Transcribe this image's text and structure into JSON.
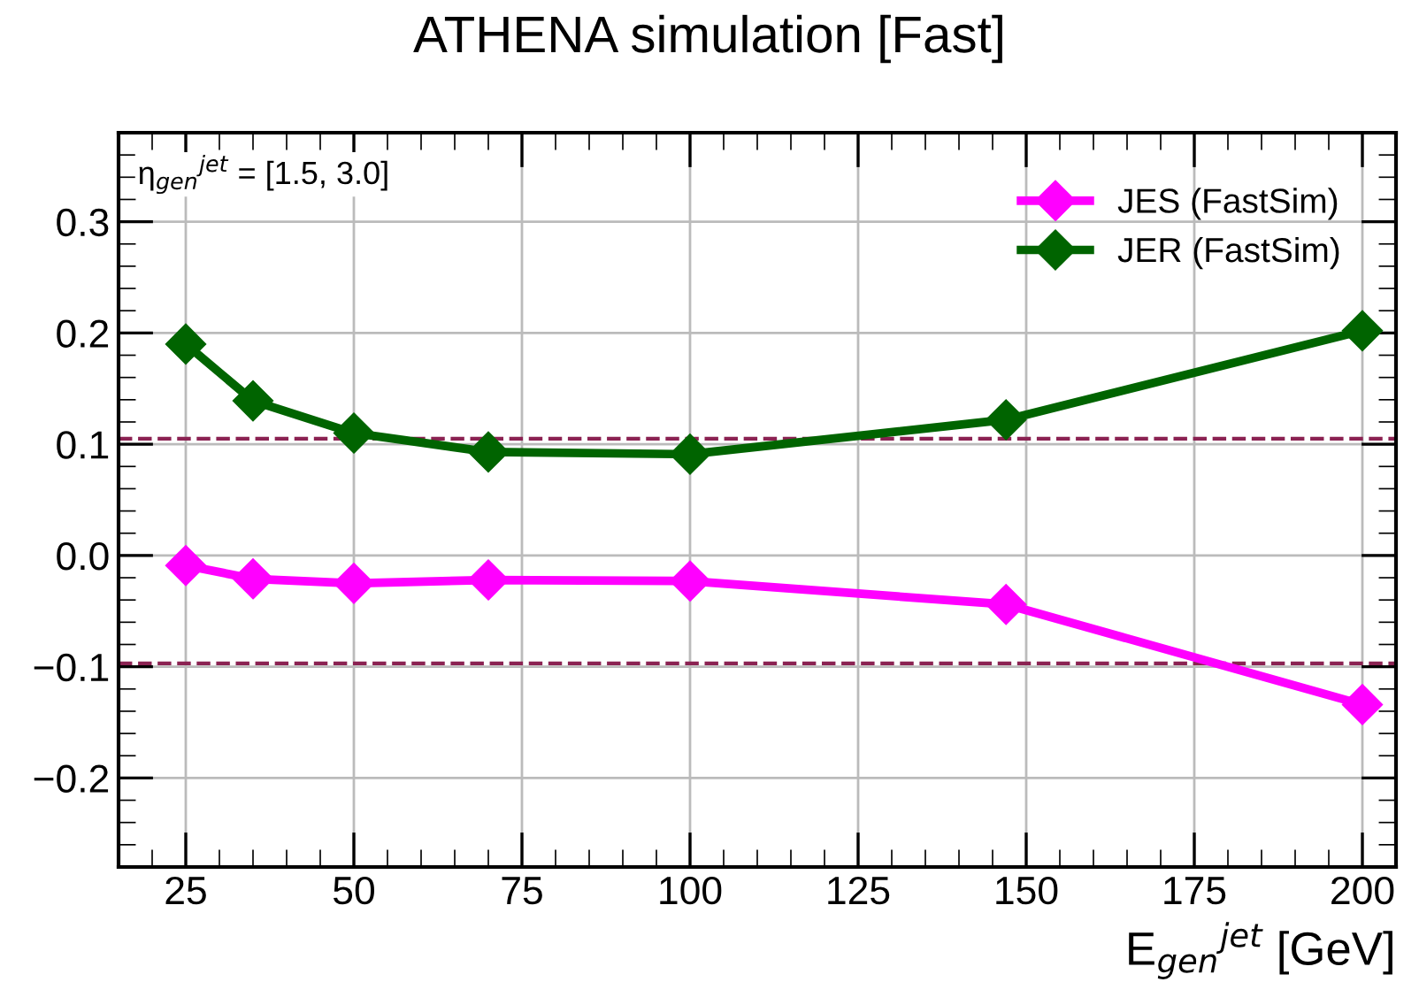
{
  "chart_data": {
    "type": "line",
    "title": "ATHENA simulation [Fast]",
    "xlabel": "E$_{gen}$$^{jet}$ [GeV]",
    "annotations": [
      "η$_{gen}$$^{jet}$ = [1.5, 3.0]"
    ],
    "x": [
      25,
      35,
      50,
      70,
      100,
      147,
      200
    ],
    "series": [
      {
        "name": "JES (FastSim)",
        "color": "#ff00ff",
        "values": [
          -0.009,
          -0.021,
          -0.025,
          -0.022,
          -0.023,
          -0.044,
          -0.134
        ]
      },
      {
        "name": "JER (FastSim)",
        "color": "#006400",
        "values": [
          0.19,
          0.139,
          0.11,
          0.093,
          0.091,
          0.122,
          0.202
        ]
      }
    ],
    "ref_lines": [
      {
        "axis": "y",
        "value": 0.105,
        "color": "#8b2252",
        "line_style": "dashed"
      },
      {
        "axis": "y",
        "value": -0.097,
        "color": "#8b2252",
        "line_style": "dashed"
      }
    ],
    "xlim": [
      15,
      205
    ],
    "xticks": [
      25,
      50,
      75,
      100,
      125,
      150,
      175,
      200
    ],
    "ylim": [
      -0.28,
      0.38
    ],
    "yticks": [
      {
        "value": -0.2,
        "label": "−0.2"
      },
      {
        "value": -0.1,
        "label": "−0.1"
      },
      {
        "value": 0,
        "label": "0.0"
      },
      0.1,
      0.2,
      0.3
    ],
    "grid": true,
    "legend": "top right",
    "marker": "diamond",
    "line_style": "solid"
  }
}
